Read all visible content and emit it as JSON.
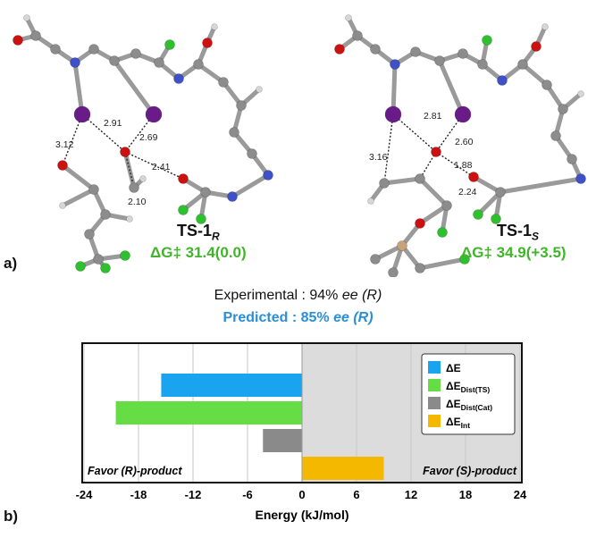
{
  "panel_a": {
    "label": "a)",
    "ts_left": {
      "name": "TS-1",
      "sub": "R",
      "energy": "ΔG‡ 31.4(0.0)",
      "distances": [
        "2.91",
        "2.69",
        "3.12",
        "2.41",
        "2.10"
      ]
    },
    "ts_right": {
      "name": "TS-1",
      "sub": "S",
      "energy": "ΔG‡ 34.9(+3.5)",
      "distances": [
        "2.81",
        "2.60",
        "3.16",
        "1.88",
        "2.24"
      ]
    },
    "atom_colors": {
      "carbon": "#8c8c8c",
      "hydrogen": "#d6d6d6",
      "oxygen": "#cc1111",
      "nitrogen": "#3f51c9",
      "iodine": "#6a1b8a",
      "fluorine": "#2fc02f",
      "silicon": "#c9a27a"
    }
  },
  "summary": {
    "experimental_prefix": "Experimental : 94% ",
    "experimental_ee": "ee (R)",
    "predicted_prefix": "Predicted : 85% ",
    "predicted_ee": "ee (R)"
  },
  "panel_b": {
    "label": "b)",
    "favor_left": "Favor (R)-product",
    "favor_right": "Favor (S)-product"
  },
  "chart_data": {
    "type": "bar",
    "orientation": "horizontal",
    "xlabel": "Energy (kJ/mol)",
    "xlim": [
      -24,
      24
    ],
    "xticks": [
      "-24",
      "-18",
      "-12",
      "-6",
      "0",
      "6",
      "12",
      "18",
      "24"
    ],
    "series": [
      {
        "name": "ΔE",
        "value": -15.5,
        "color": "#1aa3ee"
      },
      {
        "name": "ΔE_Dist(TS)",
        "value": -20.5,
        "color": "#66dd44"
      },
      {
        "name": "ΔE_Dist(Cat)",
        "value": -4.3,
        "color": "#8a8a8a"
      },
      {
        "name": "ΔE_Int",
        "value": 9.0,
        "color": "#f5b800"
      }
    ],
    "legend": {
      "placement": "top-right",
      "items": [
        {
          "main": "ΔE",
          "sub": ""
        },
        {
          "main": "ΔE",
          "sub": "Dist(TS)"
        },
        {
          "main": "ΔE",
          "sub": "Dist(Cat)"
        },
        {
          "main": "ΔE",
          "sub": "Int"
        }
      ]
    },
    "shaded_region": [
      0,
      24
    ],
    "shade_color": "#dcdcdc",
    "grid": "vertical"
  }
}
